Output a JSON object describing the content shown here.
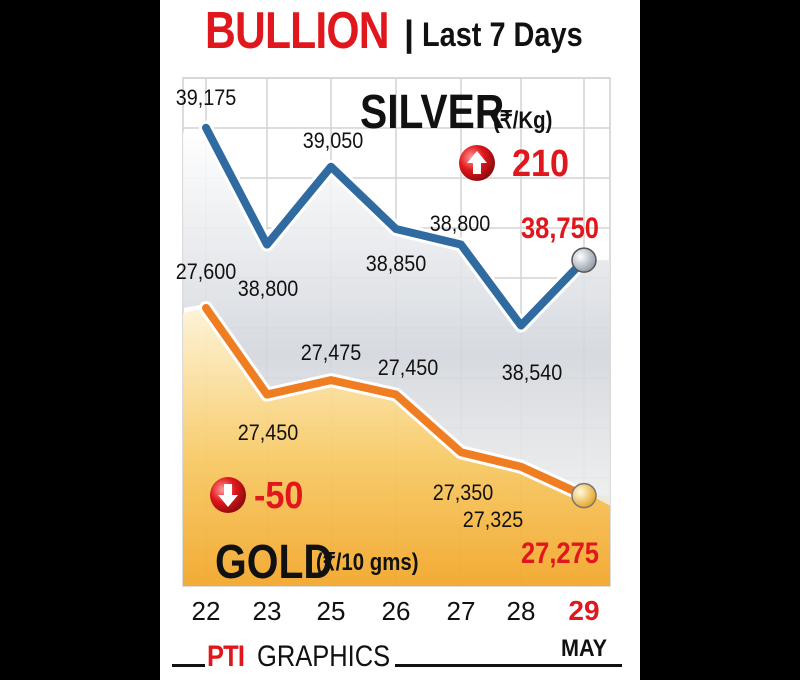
{
  "header": {
    "title": "BULLION",
    "separator": "|",
    "subtitle": "Last 7 Days"
  },
  "footer": {
    "brand": "PTI",
    "brand_suffix": "GRAPHICS"
  },
  "chart_data": {
    "type": "line",
    "x": [
      "22",
      "23",
      "25",
      "26",
      "27",
      "28",
      "29"
    ],
    "x_month": "MAY",
    "series": [
      {
        "name": "SILVER",
        "unit": "(₹/Kg)",
        "color": "#2f6aa0",
        "values": [
          39175,
          38800,
          39050,
          38850,
          38800,
          38540,
          38750
        ],
        "labels": [
          "39,175",
          "38,800",
          "39,050",
          "38,850",
          "38,800",
          "38,540",
          "38,750"
        ],
        "change": "210",
        "change_direction": "up"
      },
      {
        "name": "GOLD",
        "unit": "(₹/10 gms)",
        "color": "#ef7d22",
        "values": [
          27600,
          27450,
          27475,
          27450,
          27350,
          27325,
          27275
        ],
        "labels": [
          "27,600",
          "27,450",
          "27,475",
          "27,450",
          "27,350",
          "27,325",
          "27,275"
        ],
        "change": "-50",
        "change_direction": "down"
      }
    ],
    "highlight_color": "#e0171c",
    "grid": true
  }
}
